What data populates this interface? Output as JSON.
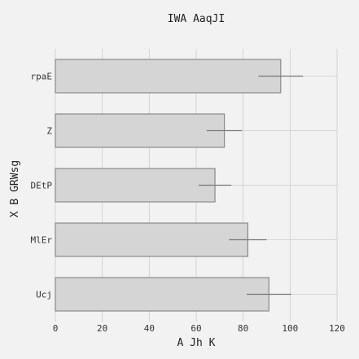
{
  "chart_data": {
    "type": "bar",
    "orientation": "horizontal",
    "title": "IWA AaqJI",
    "xlabel": "A Jh K",
    "ylabel": "X B GRWsg",
    "xlim": [
      0,
      120
    ],
    "xticks": [
      0,
      20,
      40,
      60,
      80,
      100,
      120
    ],
    "grid": true,
    "categories": [
      "rpaE",
      "Z",
      "DEtP",
      "MlEr",
      "Ucj"
    ],
    "values": [
      96,
      72,
      68,
      82,
      91
    ],
    "errors": [
      9.5,
      7.5,
      7,
      8,
      9.5
    ],
    "colors": {
      "bar_fill": "#d5d5d5",
      "bar_edge": "#8a8a8a",
      "error_bar": "#777777",
      "grid": "#cccccc",
      "background": "#f2f2f2"
    }
  }
}
